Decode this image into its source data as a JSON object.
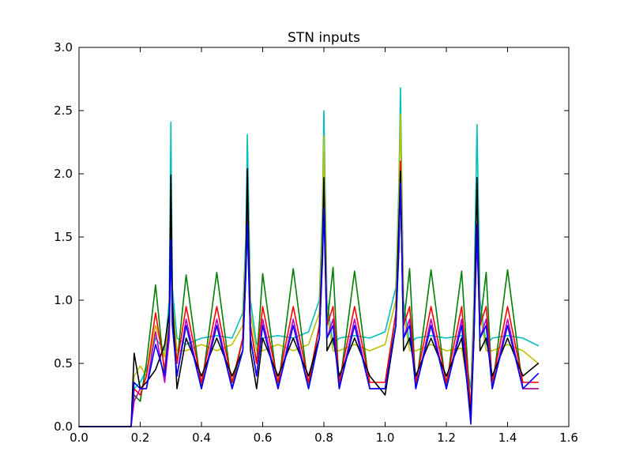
{
  "chart_data": {
    "type": "line",
    "title": "STN inputs",
    "xlabel": "",
    "ylabel": "",
    "xlim": [
      0.0,
      1.6
    ],
    "ylim": [
      0.0,
      3.0
    ],
    "grid": false,
    "x_ticks": [
      "0.0",
      "0.2",
      "0.4",
      "0.6",
      "0.8",
      "1.0",
      "1.2",
      "1.4",
      "1.6"
    ],
    "y_ticks": [
      "0.0",
      "0.5",
      "1.0",
      "1.5",
      "2.0",
      "2.5",
      "3.0"
    ],
    "series": [
      {
        "color": "#00bfbf",
        "x": [
          0.0,
          0.17,
          0.18,
          0.2,
          0.22,
          0.25,
          0.28,
          0.295,
          0.3,
          0.305,
          0.32,
          0.35,
          0.4,
          0.45,
          0.5,
          0.535,
          0.545,
          0.55,
          0.56,
          0.58,
          0.6,
          0.65,
          0.7,
          0.75,
          0.785,
          0.795,
          0.8,
          0.81,
          0.83,
          0.85,
          0.9,
          0.95,
          1.0,
          1.035,
          1.045,
          1.05,
          1.06,
          1.08,
          1.1,
          1.15,
          1.2,
          1.25,
          1.28,
          1.29,
          1.3,
          1.31,
          1.33,
          1.35,
          1.4,
          1.45,
          1.5
        ],
        "y": [
          0.0,
          0.0,
          0.3,
          0.35,
          0.45,
          0.7,
          0.6,
          1.0,
          2.41,
          1.1,
          0.7,
          0.65,
          0.7,
          0.72,
          0.7,
          0.9,
          1.5,
          2.31,
          1.0,
          0.65,
          0.7,
          0.72,
          0.7,
          0.75,
          1.0,
          1.7,
          2.5,
          1.0,
          0.65,
          0.7,
          0.72,
          0.7,
          0.75,
          1.1,
          1.9,
          2.68,
          1.0,
          0.65,
          0.7,
          0.72,
          0.7,
          0.72,
          0.3,
          1.0,
          2.39,
          1.0,
          0.65,
          0.7,
          0.72,
          0.7,
          0.64
        ]
      },
      {
        "color": "#bfbf00",
        "x": [
          0.0,
          0.17,
          0.18,
          0.2,
          0.22,
          0.25,
          0.28,
          0.295,
          0.3,
          0.305,
          0.32,
          0.35,
          0.4,
          0.45,
          0.5,
          0.535,
          0.545,
          0.55,
          0.56,
          0.58,
          0.6,
          0.65,
          0.7,
          0.75,
          0.785,
          0.795,
          0.8,
          0.81,
          0.83,
          0.85,
          0.9,
          0.95,
          1.0,
          1.035,
          1.045,
          1.05,
          1.06,
          1.08,
          1.1,
          1.15,
          1.2,
          1.25,
          1.28,
          1.29,
          1.3,
          1.31,
          1.33,
          1.35,
          1.4,
          1.45,
          1.5
        ],
        "y": [
          0.0,
          0.0,
          0.4,
          0.48,
          0.4,
          0.8,
          0.55,
          0.9,
          1.9,
          1.0,
          0.6,
          0.6,
          0.65,
          0.6,
          0.65,
          0.8,
          1.4,
          1.97,
          0.9,
          0.6,
          0.6,
          0.65,
          0.6,
          0.65,
          0.9,
          1.6,
          2.3,
          0.9,
          0.6,
          0.6,
          0.65,
          0.6,
          0.65,
          1.0,
          1.8,
          2.47,
          0.9,
          0.6,
          0.6,
          0.65,
          0.6,
          0.62,
          0.2,
          0.9,
          1.88,
          0.9,
          0.6,
          0.6,
          0.65,
          0.6,
          0.5
        ]
      },
      {
        "color": "#008000",
        "x": [
          0.0,
          0.17,
          0.18,
          0.2,
          0.22,
          0.25,
          0.28,
          0.295,
          0.3,
          0.305,
          0.32,
          0.35,
          0.4,
          0.45,
          0.5,
          0.535,
          0.545,
          0.55,
          0.56,
          0.58,
          0.6,
          0.65,
          0.7,
          0.75,
          0.785,
          0.795,
          0.8,
          0.81,
          0.83,
          0.85,
          0.9,
          0.95,
          1.0,
          1.035,
          1.045,
          1.05,
          1.06,
          1.08,
          1.1,
          1.15,
          1.2,
          1.25,
          1.28,
          1.29,
          1.3,
          1.31,
          1.33,
          1.35,
          1.4,
          1.45,
          1.5
        ],
        "y": [
          0.0,
          0.0,
          0.25,
          0.2,
          0.5,
          1.12,
          0.4,
          0.8,
          1.6,
          0.9,
          0.5,
          1.2,
          0.3,
          1.22,
          0.3,
          0.7,
          1.3,
          1.8,
          0.8,
          0.5,
          1.21,
          0.3,
          1.25,
          0.3,
          0.8,
          1.4,
          1.8,
          0.8,
          1.26,
          0.3,
          1.23,
          0.3,
          0.3,
          0.9,
          1.5,
          1.9,
          0.8,
          1.25,
          0.3,
          1.24,
          0.3,
          1.23,
          0.1,
          0.8,
          1.5,
          0.8,
          1.22,
          0.3,
          1.24,
          0.3,
          0.3
        ]
      },
      {
        "color": "#ff0000",
        "x": [
          0.0,
          0.17,
          0.18,
          0.2,
          0.22,
          0.25,
          0.28,
          0.295,
          0.3,
          0.305,
          0.32,
          0.35,
          0.4,
          0.45,
          0.5,
          0.535,
          0.545,
          0.55,
          0.56,
          0.58,
          0.6,
          0.65,
          0.7,
          0.75,
          0.785,
          0.795,
          0.8,
          0.81,
          0.83,
          0.85,
          0.9,
          0.95,
          1.0,
          1.035,
          1.045,
          1.05,
          1.06,
          1.08,
          1.1,
          1.15,
          1.2,
          1.25,
          1.28,
          1.29,
          1.3,
          1.31,
          1.33,
          1.35,
          1.4,
          1.45,
          1.5
        ],
        "y": [
          0.0,
          0.0,
          0.3,
          0.25,
          0.4,
          0.9,
          0.45,
          0.8,
          1.7,
          0.9,
          0.5,
          0.95,
          0.35,
          0.95,
          0.35,
          0.7,
          1.3,
          1.9,
          0.8,
          0.5,
          0.95,
          0.35,
          0.95,
          0.35,
          0.8,
          1.4,
          1.9,
          0.8,
          0.95,
          0.35,
          0.95,
          0.35,
          0.35,
          0.9,
          1.5,
          2.1,
          0.8,
          0.95,
          0.35,
          0.95,
          0.35,
          0.95,
          0.15,
          0.8,
          1.6,
          0.8,
          0.95,
          0.35,
          0.95,
          0.35,
          0.35
        ]
      },
      {
        "color": "#bf00bf",
        "x": [
          0.0,
          0.17,
          0.18,
          0.2,
          0.22,
          0.25,
          0.28,
          0.295,
          0.3,
          0.305,
          0.32,
          0.35,
          0.4,
          0.45,
          0.5,
          0.535,
          0.545,
          0.55,
          0.56,
          0.58,
          0.6,
          0.65,
          0.7,
          0.75,
          0.785,
          0.795,
          0.8,
          0.81,
          0.83,
          0.85,
          0.9,
          0.95,
          1.0,
          1.035,
          1.045,
          1.05,
          1.06,
          1.08,
          1.1,
          1.15,
          1.2,
          1.25,
          1.28,
          1.29,
          1.3,
          1.31,
          1.33,
          1.35,
          1.4,
          1.45,
          1.5
        ],
        "y": [
          0.0,
          0.0,
          0.2,
          0.3,
          0.3,
          0.75,
          0.35,
          0.7,
          1.5,
          0.8,
          0.4,
          0.85,
          0.3,
          0.85,
          0.3,
          0.6,
          1.2,
          1.7,
          0.7,
          0.4,
          0.85,
          0.3,
          0.85,
          0.3,
          0.7,
          1.3,
          1.8,
          0.7,
          0.85,
          0.3,
          0.85,
          0.3,
          0.3,
          0.8,
          1.4,
          2.0,
          0.7,
          0.85,
          0.3,
          0.85,
          0.3,
          0.85,
          0.05,
          0.7,
          1.5,
          0.7,
          0.85,
          0.3,
          0.85,
          0.3,
          0.3
        ]
      },
      {
        "color": "#000000",
        "x": [
          0.0,
          0.17,
          0.18,
          0.2,
          0.22,
          0.25,
          0.28,
          0.295,
          0.3,
          0.305,
          0.32,
          0.35,
          0.4,
          0.45,
          0.5,
          0.535,
          0.545,
          0.55,
          0.56,
          0.58,
          0.6,
          0.65,
          0.7,
          0.75,
          0.785,
          0.795,
          0.8,
          0.81,
          0.83,
          0.85,
          0.9,
          0.95,
          1.0,
          1.035,
          1.045,
          1.05,
          1.06,
          1.08,
          1.1,
          1.15,
          1.2,
          1.25,
          1.28,
          1.29,
          1.3,
          1.31,
          1.33,
          1.35,
          1.4,
          1.45,
          1.5
        ],
        "y": [
          0.0,
          0.0,
          0.58,
          0.3,
          0.35,
          0.45,
          0.65,
          0.9,
          1.99,
          1.0,
          0.3,
          0.7,
          0.4,
          0.7,
          0.4,
          0.6,
          1.3,
          2.04,
          0.6,
          0.3,
          0.7,
          0.4,
          0.7,
          0.4,
          0.7,
          1.4,
          1.97,
          0.6,
          0.7,
          0.4,
          0.7,
          0.4,
          0.25,
          0.8,
          1.6,
          2.02,
          0.6,
          0.7,
          0.4,
          0.7,
          0.4,
          0.7,
          0.1,
          0.7,
          1.97,
          0.6,
          0.7,
          0.4,
          0.7,
          0.4,
          0.5
        ]
      },
      {
        "color": "#0000ff",
        "x": [
          0.0,
          0.17,
          0.18,
          0.2,
          0.22,
          0.25,
          0.28,
          0.295,
          0.3,
          0.305,
          0.32,
          0.35,
          0.4,
          0.45,
          0.5,
          0.535,
          0.545,
          0.55,
          0.56,
          0.58,
          0.6,
          0.65,
          0.7,
          0.75,
          0.785,
          0.795,
          0.8,
          0.81,
          0.83,
          0.85,
          0.9,
          0.95,
          1.0,
          1.035,
          1.045,
          1.05,
          1.06,
          1.08,
          1.1,
          1.15,
          1.2,
          1.25,
          1.28,
          1.29,
          1.3,
          1.31,
          1.33,
          1.35,
          1.4,
          1.45,
          1.5
        ],
        "y": [
          0.0,
          0.0,
          0.35,
          0.3,
          0.3,
          0.65,
          0.4,
          0.8,
          1.48,
          0.8,
          0.4,
          0.8,
          0.3,
          0.8,
          0.3,
          0.6,
          1.2,
          1.6,
          0.7,
          0.4,
          0.8,
          0.3,
          0.8,
          0.3,
          0.7,
          1.3,
          1.73,
          0.7,
          0.8,
          0.3,
          0.8,
          0.3,
          0.3,
          0.8,
          1.4,
          1.93,
          0.7,
          0.8,
          0.3,
          0.8,
          0.3,
          0.8,
          0.02,
          0.7,
          1.6,
          0.7,
          0.8,
          0.3,
          0.8,
          0.3,
          0.42
        ]
      }
    ]
  }
}
